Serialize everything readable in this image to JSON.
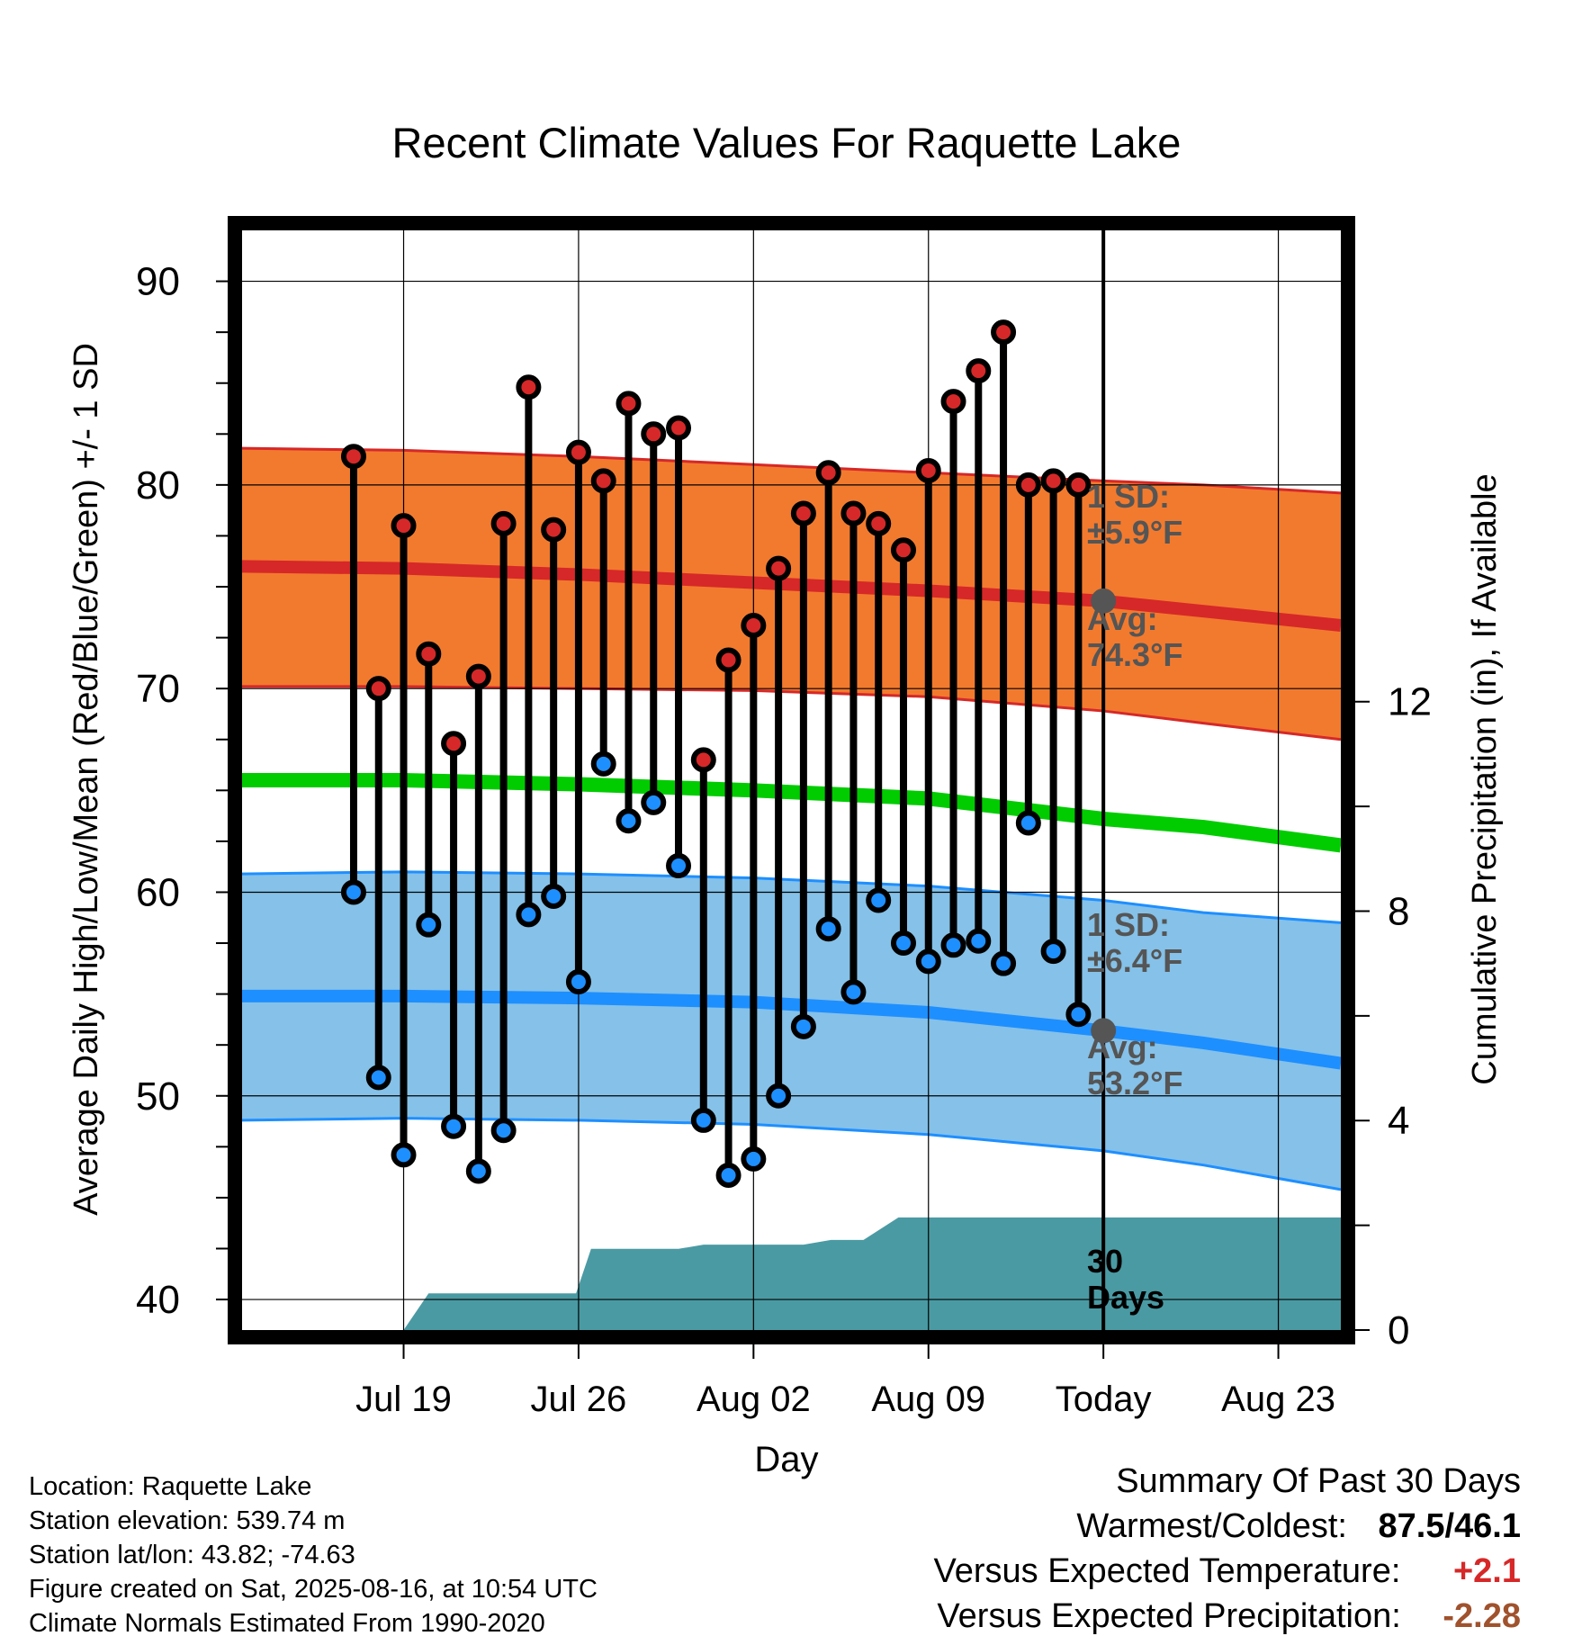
{
  "chart_data": {
    "type": "line",
    "title": "Recent Climate Values For Raquette Lake",
    "xlabel": "Day",
    "ylabel_left": "Average Daily High/Low/Mean (Red/Blue/Green) +/- 1 SD",
    "ylabel_right": "Cumulative Precipitation (in), If Available",
    "ylim": [
      38.5,
      92.5
    ],
    "y2lim": [
      0,
      21
    ],
    "x_range_days": [
      -34.5,
      9.5
    ],
    "y_ticks": [
      40,
      50,
      60,
      70,
      80,
      90
    ],
    "y2_ticks": [
      0,
      4,
      8,
      12
    ],
    "x_ticks": [
      {
        "day": -28,
        "label": "Jul 19"
      },
      {
        "day": -21,
        "label": "Jul 26"
      },
      {
        "day": -14,
        "label": "Aug 02"
      },
      {
        "day": -7,
        "label": "Aug 09"
      },
      {
        "day": 0,
        "label": "Today"
      },
      {
        "day": 7,
        "label": "Aug 23"
      }
    ],
    "colors": {
      "high_band": "#f27a2e",
      "high_line": "#d62828",
      "low_band": "#85c1e8",
      "low_line": "#1e8fff",
      "mean_line": "#00cc00",
      "precip": "#4a9aa3",
      "high_marker": "#d62828",
      "low_marker": "#1e8fff",
      "annotation": "#555555"
    },
    "normals": {
      "days": [
        -34.5,
        -28,
        -21,
        -14,
        -7,
        0,
        4,
        9.5
      ],
      "high_avg": [
        76.0,
        75.9,
        75.6,
        75.2,
        74.8,
        74.3,
        73.8,
        73.1
      ],
      "high_upper": [
        81.8,
        81.7,
        81.4,
        81.0,
        80.6,
        80.2,
        80.0,
        79.6
      ],
      "high_lower": [
        70.1,
        70.1,
        70.0,
        69.9,
        69.6,
        68.9,
        68.3,
        67.5
      ],
      "mean": [
        65.5,
        65.5,
        65.3,
        65.0,
        64.6,
        63.6,
        63.2,
        62.3
      ],
      "low_avg": [
        54.9,
        54.9,
        54.8,
        54.6,
        54.1,
        53.2,
        52.6,
        51.6
      ],
      "low_upper": [
        60.9,
        61.0,
        60.9,
        60.7,
        60.3,
        59.6,
        59.0,
        58.5
      ],
      "low_lower": [
        48.8,
        48.9,
        48.8,
        48.6,
        48.1,
        47.3,
        46.6,
        45.4
      ]
    },
    "series": [
      {
        "name": "High",
        "days": [
          -30,
          -29,
          -28,
          -27,
          -26,
          -25,
          -24,
          -23,
          -22,
          -21,
          -20,
          -19,
          -18,
          -17,
          -16,
          -15,
          -14,
          -13,
          -12,
          -11,
          -10,
          -9,
          -8,
          -7,
          -6,
          -5,
          -4,
          -3,
          -2,
          -1
        ],
        "values": [
          81.4,
          70.0,
          78.0,
          71.7,
          67.3,
          70.6,
          78.1,
          84.8,
          77.8,
          81.6,
          80.2,
          84.0,
          82.5,
          82.8,
          66.5,
          71.4,
          73.1,
          75.9,
          78.6,
          80.6,
          78.6,
          78.1,
          76.8,
          80.7,
          84.1,
          85.6,
          87.5,
          80.0,
          80.2,
          80.0
        ]
      },
      {
        "name": "Low",
        "days": [
          -30,
          -29,
          -28,
          -27,
          -26,
          -25,
          -24,
          -23,
          -22,
          -21,
          -20,
          -19,
          -18,
          -17,
          -16,
          -15,
          -14,
          -13,
          -12,
          -11,
          -10,
          -9,
          -8,
          -7,
          -6,
          -5,
          -4,
          -3,
          -2,
          -1
        ],
        "values": [
          60.0,
          50.9,
          47.1,
          58.4,
          48.5,
          46.3,
          48.3,
          58.9,
          59.8,
          55.6,
          66.3,
          63.5,
          64.4,
          61.3,
          48.8,
          46.1,
          46.9,
          50.0,
          53.4,
          58.2,
          55.1,
          59.6,
          57.5,
          56.6,
          57.4,
          57.6,
          56.5,
          63.4,
          57.1,
          54.0
        ]
      }
    ],
    "precip_cumulative": {
      "days": [
        -28,
        -27,
        -21.1,
        -20.5,
        -17,
        -16,
        -13.5,
        -12,
        -10.9,
        -9.6,
        -8.2,
        -7.5,
        9.5
      ],
      "values": [
        0,
        0.7,
        0.7,
        1.55,
        1.55,
        1.63,
        1.63,
        1.63,
        1.72,
        1.72,
        2.15,
        2.15,
        2.15
      ]
    },
    "annotations": {
      "high_sd": [
        "1 SD:",
        "±5.9°F"
      ],
      "high_avg": [
        "Avg:",
        "74.3°F"
      ],
      "low_sd": [
        "1 SD:",
        "±6.4°F"
      ],
      "low_avg": [
        "Avg:",
        "53.2°F"
      ],
      "precip_label": [
        "30",
        "Days"
      ]
    }
  },
  "info": {
    "location": "Location: Raquette Lake",
    "elevation": "Station elevation: 539.74 m",
    "latlon": "Station lat/lon: 43.82; -74.63",
    "created": "Figure created on Sat, 2025-08-16, at 10:54 UTC",
    "normals": "Climate Normals Estimated From 1990-2020"
  },
  "summary": {
    "heading": "Summary Of Past 30 Days",
    "warmest_label": "Warmest/Coldest:",
    "warmest_value": "87.5/46.1",
    "temp_label": "Versus Expected Temperature:",
    "temp_value": "+2.1",
    "temp_color": "#d62828",
    "precip_label": "Versus Expected Precipitation:",
    "precip_value": "-2.28",
    "precip_color": "#a0522d"
  }
}
